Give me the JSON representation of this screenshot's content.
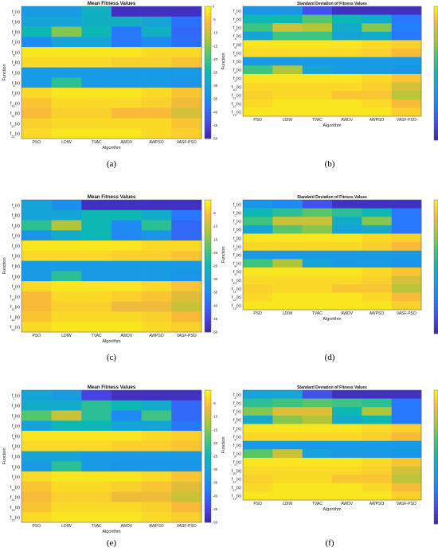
{
  "figure": {
    "captions": [
      "(a)",
      "(b)",
      "(c)",
      "(d)",
      "(e)",
      "(f)"
    ]
  },
  "colorscale": {
    "name": "parula",
    "min": -50,
    "max": 0
  },
  "chart_data": [
    {
      "type": "heatmap",
      "panel": "(a)",
      "title": "Mean Fitness Values",
      "xlabel": "Algorithm",
      "ylabel": "Function",
      "categories": [
        "PSO",
        "LDIW",
        "TVAC",
        "AWDV",
        "AWPSO",
        "VASF-PSO"
      ],
      "functions": [
        "f1(x)",
        "f2(x)",
        "f3(x)",
        "f4(x)",
        "f5(x)",
        "f6(x)",
        "f7(x)",
        "f8(x)",
        "f9(x)",
        "f10(x)",
        "f11(x)",
        "f12(x)",
        "f13(x)"
      ],
      "values": [
        [
          -32,
          -32,
          -27,
          -48,
          -48,
          -48
        ],
        [
          -30,
          -30,
          -27,
          -27,
          -30,
          -39
        ],
        [
          -25,
          -15,
          -25,
          -38,
          -27,
          -40
        ],
        [
          -35,
          -30,
          -30,
          -38,
          -35,
          -39
        ],
        [
          -2,
          -2,
          -2,
          -2,
          -3,
          -3
        ],
        [
          -3,
          -3,
          -3,
          -4,
          -4,
          -5
        ],
        [
          -32,
          -32,
          -32,
          -32,
          -32,
          -32
        ],
        [
          -32,
          -22,
          -32,
          -32,
          -32,
          -33
        ],
        [
          -3,
          -2,
          -2,
          -2,
          -3,
          -5
        ],
        [
          -5,
          -3,
          -3,
          -3,
          -4,
          -7
        ],
        [
          -6,
          -4,
          -4,
          -6,
          -6,
          -9
        ],
        [
          -4,
          -3,
          -3,
          -3,
          -3,
          -5
        ],
        [
          -3,
          -2,
          -2,
          -2,
          -3,
          -4
        ]
      ],
      "colorbar_ticks": [
        0,
        -5,
        -10,
        -15,
        -20,
        -25,
        -30,
        -35,
        -40,
        -45,
        -50
      ]
    },
    {
      "type": "heatmap",
      "panel": "(b)",
      "title": "Standard Deviation of Fitness Values",
      "xlabel": "Algorithm",
      "ylabel": "Function",
      "categories": [
        "PSO",
        "LDIW",
        "TVAC",
        "AWDV",
        "AWPSO",
        "VASF-PSO"
      ],
      "functions": [
        "f1(x)",
        "f2(x)",
        "f3(x)",
        "f4(x)",
        "f5(x)",
        "f6(x)",
        "f7(x)",
        "f8(x)",
        "f9(x)",
        "f10(x)",
        "f11(x)",
        "f12(x)",
        "f13(x)"
      ],
      "values": [
        [
          -33,
          -33,
          -43,
          -48,
          -48,
          -48
        ],
        [
          -25,
          -25,
          -18,
          -25,
          -28,
          -38
        ],
        [
          -20,
          -10,
          -12,
          -28,
          -15,
          -37
        ],
        [
          -30,
          -20,
          -20,
          -30,
          -28,
          -38
        ],
        [
          -2,
          -2,
          -2,
          -2,
          -3,
          -4
        ],
        [
          -3,
          -3,
          -3,
          -3,
          -4,
          -6
        ],
        [
          -32,
          -32,
          -32,
          -32,
          -32,
          -32
        ],
        [
          -20,
          -12,
          -30,
          -32,
          -32,
          -33
        ],
        [
          -2,
          -2,
          -2,
          -2,
          -3,
          -5
        ],
        [
          -3,
          -3,
          -3,
          -3,
          -4,
          -9
        ],
        [
          -4,
          -3,
          -3,
          -5,
          -5,
          -11
        ],
        [
          -3,
          -2,
          -2,
          -2,
          -3,
          -6
        ],
        [
          -2,
          -2,
          -2,
          -2,
          -2,
          -4
        ]
      ],
      "colorbar_ticks": [
        0,
        -5,
        -10,
        -15,
        -20,
        -25,
        -30,
        -35,
        -40,
        -45,
        -50
      ]
    },
    {
      "type": "heatmap",
      "panel": "(c)",
      "title": "Mean Fitness Values",
      "xlabel": "Algorithm",
      "ylabel": "Function",
      "categories": [
        "PSO",
        "LDIW",
        "TVAC",
        "AWDV",
        "AWPSO",
        "VASF-PSO"
      ],
      "functions": [
        "f1(x)",
        "f2(x)",
        "f3(x)",
        "f4(x)",
        "f5(x)",
        "f6(x)",
        "f7(x)",
        "f8(x)",
        "f9(x)",
        "f10(x)",
        "f11(x)",
        "f12(x)",
        "f13(x)"
      ],
      "values": [
        [
          -30,
          -34,
          -48,
          -48,
          -48,
          -48
        ],
        [
          -30,
          -30,
          -25,
          -25,
          -28,
          -38
        ],
        [
          -22,
          -12,
          -25,
          -35,
          -22,
          -40
        ],
        [
          -33,
          -28,
          -25,
          -35,
          -33,
          -40
        ],
        [
          -2,
          -2,
          -2,
          -2,
          -3,
          -3
        ],
        [
          -3,
          -3,
          -3,
          -4,
          -4,
          -5
        ],
        [
          -32,
          -32,
          -32,
          -32,
          -32,
          -32
        ],
        [
          -32,
          -22,
          -32,
          -32,
          -32,
          -33
        ],
        [
          -3,
          -2,
          -2,
          -2,
          -3,
          -5
        ],
        [
          -6,
          -3,
          -3,
          -4,
          -5,
          -8
        ],
        [
          -6,
          -4,
          -4,
          -7,
          -7,
          -10
        ],
        [
          -5,
          -3,
          -3,
          -3,
          -4,
          -6
        ],
        [
          -3,
          -2,
          -2,
          -2,
          -3,
          -4
        ]
      ],
      "colorbar_ticks": [
        -5,
        -10,
        -15,
        -20,
        -25,
        -30,
        -35,
        -40,
        -45,
        -50
      ]
    },
    {
      "type": "heatmap",
      "panel": "(d)",
      "title": "Standard Deviation of Fitness Values",
      "xlabel": "Algorithm",
      "ylabel": "Function",
      "categories": [
        "PSO",
        "LDIW",
        "TVAC",
        "AWDV",
        "AWPSO",
        "VASF-PSO"
      ],
      "functions": [
        "f1(x)",
        "f2(x)",
        "f3(x)",
        "f4(x)",
        "f5(x)",
        "f6(x)",
        "f7(x)",
        "f8(x)",
        "f9(x)",
        "f10(x)",
        "f11(x)",
        "f12(x)",
        "f13(x)"
      ],
      "values": [
        [
          -33,
          -35,
          -43,
          -48,
          -48,
          -48
        ],
        [
          -25,
          -22,
          -18,
          -22,
          -25,
          -38
        ],
        [
          -20,
          -10,
          -10,
          -28,
          -15,
          -38
        ],
        [
          -30,
          -18,
          -15,
          -30,
          -28,
          -38
        ],
        [
          -2,
          -2,
          -2,
          -2,
          -3,
          -4
        ],
        [
          -3,
          -3,
          -3,
          -3,
          -4,
          -6
        ],
        [
          -32,
          -32,
          -32,
          -32,
          -32,
          -32
        ],
        [
          -20,
          -12,
          -30,
          -32,
          -32,
          -33
        ],
        [
          -2,
          -2,
          -2,
          -2,
          -3,
          -5
        ],
        [
          -3,
          -3,
          -3,
          -3,
          -4,
          -9
        ],
        [
          -4,
          -3,
          -3,
          -5,
          -5,
          -11
        ],
        [
          -3,
          -2,
          -2,
          -2,
          -3,
          -6
        ],
        [
          -2,
          -2,
          -2,
          -2,
          -2,
          -4
        ]
      ],
      "colorbar_ticks": [
        0,
        -5,
        -10,
        -15,
        -20,
        -25,
        -30,
        -35,
        -40,
        -45,
        -50
      ]
    },
    {
      "type": "heatmap",
      "panel": "(e)",
      "title": "Mean Fitness Values",
      "xlabel": "Algorithm",
      "ylabel": "Function",
      "categories": [
        "PSO",
        "LDIW",
        "TVAC",
        "AWDV",
        "AWPSO",
        "VASF-PSO"
      ],
      "functions": [
        "f1(x)",
        "f2(x)",
        "f3(x)",
        "f4(x)",
        "f5(x)",
        "f6(x)",
        "f7(x)",
        "f8(x)",
        "f9(x)",
        "f10(x)",
        "f11(x)",
        "f12(x)",
        "f13(x)"
      ],
      "values": [
        [
          -30,
          -32,
          -45,
          -48,
          -48,
          -48
        ],
        [
          -28,
          -28,
          -22,
          -25,
          -28,
          -40
        ],
        [
          -18,
          -10,
          -22,
          -35,
          -20,
          -40
        ],
        [
          -30,
          -25,
          -25,
          -30,
          -30,
          -38
        ],
        [
          -2,
          -2,
          -2,
          -2,
          -3,
          -4
        ],
        [
          -3,
          -3,
          -3,
          -4,
          -4,
          -5
        ],
        [
          -30,
          -30,
          -32,
          -32,
          -32,
          -32
        ],
        [
          -32,
          -22,
          -32,
          -33,
          -33,
          -33
        ],
        [
          -3,
          -2,
          -2,
          -2,
          -3,
          -5
        ],
        [
          -5,
          -3,
          -3,
          -4,
          -5,
          -8
        ],
        [
          -6,
          -4,
          -4,
          -7,
          -7,
          -10
        ],
        [
          -5,
          -3,
          -3,
          -3,
          -4,
          -6
        ],
        [
          -3,
          -2,
          -2,
          -2,
          -3,
          -4
        ]
      ],
      "colorbar_ticks": [
        -5,
        -10,
        -15,
        -20,
        -25,
        -30,
        -35,
        -40,
        -45,
        -50
      ]
    },
    {
      "type": "heatmap",
      "panel": "(f)",
      "title": "Standard Deviation of Fitness Values",
      "xlabel": "Algorithm",
      "ylabel": "Function",
      "categories": [
        "PSO",
        "LDIW",
        "TVAC",
        "AWDV",
        "AWPSO",
        "VASF-PSO"
      ],
      "functions": [
        "f1(x)",
        "f2(x)",
        "f3(x)",
        "f4(x)",
        "f5(x)",
        "f6(x)",
        "f7(x)",
        "f8(x)",
        "f9(x)",
        "f10(x)",
        "f11(x)",
        "f12(x)",
        "f13(x)"
      ],
      "values": [
        [
          -30,
          -30,
          -43,
          -48,
          -48,
          -48
        ],
        [
          -22,
          -20,
          -18,
          -20,
          -22,
          -38
        ],
        [
          -15,
          -8,
          -8,
          -25,
          -12,
          -38
        ],
        [
          -28,
          -15,
          -12,
          -28,
          -25,
          -38
        ],
        [
          -2,
          -2,
          -2,
          -2,
          -3,
          -4
        ],
        [
          -3,
          -3,
          -3,
          -3,
          -4,
          -6
        ],
        [
          -32,
          -32,
          -32,
          -32,
          -32,
          -32
        ],
        [
          -18,
          -10,
          -30,
          -32,
          -32,
          -33
        ],
        [
          -2,
          -2,
          -2,
          -2,
          -3,
          -5
        ],
        [
          -3,
          -3,
          -3,
          -3,
          -4,
          -9
        ],
        [
          -4,
          -3,
          -3,
          -5,
          -5,
          -11
        ],
        [
          -3,
          -2,
          -2,
          -2,
          -3,
          -6
        ],
        [
          -2,
          -2,
          -2,
          -2,
          -2,
          -4
        ]
      ],
      "colorbar_ticks": [
        0,
        -5,
        -10,
        -15,
        -20,
        -25,
        -30,
        -35,
        -40,
        -45,
        -50
      ]
    }
  ]
}
